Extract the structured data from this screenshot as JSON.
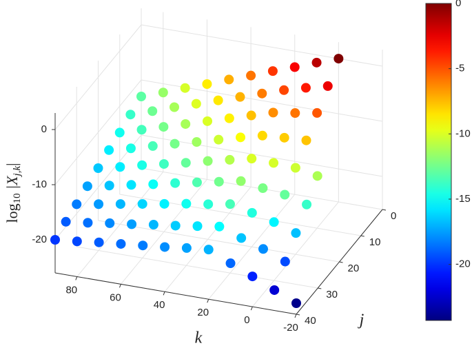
{
  "chart_data": {
    "type": "scatter3d",
    "xlabel": "k",
    "ylabel": "j",
    "zlabel": [
      "log",
      "10",
      " |X",
      "j,k",
      "|"
    ],
    "xlim": [
      -20,
      90
    ],
    "xticks": [
      -20,
      0,
      20,
      40,
      60,
      80
    ],
    "ylim": [
      0,
      40
    ],
    "yticks": [
      0,
      10,
      20,
      30,
      40
    ],
    "zlim": [
      -26,
      3
    ],
    "zticks": [
      -20,
      -10,
      0
    ],
    "colormap": "jet",
    "clim": [
      -24.3,
      0
    ],
    "cticks": [
      -20,
      -15,
      -10,
      -5,
      0
    ],
    "grid": true,
    "series": [
      {
        "y": 0,
        "x": [
          0,
          10,
          20,
          30,
          40,
          50,
          60,
          70,
          80,
          90
        ],
        "values": [
          0,
          -1.4,
          -2.9,
          -4.3,
          -5.8,
          -7.2,
          -8.7,
          -10.1,
          -11.6,
          -13
        ]
      },
      {
        "y": 5,
        "x": [
          0,
          10,
          20,
          30,
          40,
          50,
          60,
          70,
          80,
          90
        ],
        "values": [
          -2.6,
          -3.6,
          -4.7,
          -6.0,
          -7.3,
          -8.6,
          -9.9,
          -11.2,
          -12.6,
          -13.9
        ]
      },
      {
        "y": 10,
        "x": [
          0,
          10,
          20,
          30,
          40,
          50,
          60,
          70,
          80,
          90
        ],
        "values": [
          -5.1,
          -5.8,
          -6.4,
          -7.6,
          -8.8,
          -10.0,
          -11.2,
          -12.4,
          -13.6,
          -14.8
        ]
      },
      {
        "y": 15,
        "x": [
          0,
          10,
          20,
          30,
          40,
          50,
          60,
          70,
          80,
          90
        ],
        "values": [
          -7.7,
          -7.9,
          -8.2,
          -9.2,
          -10.3,
          -11.4,
          -12.4,
          -13.5,
          -14.6,
          -15.6
        ]
      },
      {
        "y": 20,
        "x": [
          -10,
          0,
          10,
          20,
          30,
          40,
          50,
          60,
          70,
          80,
          90
        ],
        "values": [
          -11.1,
          -10.3,
          -10.1,
          -10.0,
          -10.9,
          -11.8,
          -12.8,
          -13.7,
          -14.6,
          -15.6,
          -16.5
        ]
      },
      {
        "y": 25,
        "x": [
          -10,
          0,
          10,
          20,
          30,
          40,
          50,
          60,
          70,
          80,
          90
        ],
        "values": [
          -13.9,
          -12.8,
          -12.3,
          -11.7,
          -12.5,
          -13.3,
          -14.1,
          -15.0,
          -15.8,
          -16.6,
          -17.4
        ]
      },
      {
        "y": 30,
        "x": [
          -10,
          0,
          10,
          20,
          30,
          40,
          50,
          60,
          70,
          80,
          90
        ],
        "values": [
          -16.7,
          -15.4,
          -14.4,
          -13.5,
          -14.2,
          -14.8,
          -15.5,
          -16.2,
          -16.9,
          -17.6,
          -18.3
        ]
      },
      {
        "y": 35,
        "x": [
          -10,
          0,
          10,
          20,
          30,
          40,
          50,
          60,
          70,
          80,
          90
        ],
        "values": [
          -19.5,
          -17.9,
          -16.6,
          -15.2,
          -15.8,
          -16.4,
          -16.9,
          -17.5,
          -18.0,
          -18.6,
          -19.1
        ]
      },
      {
        "y": 40,
        "x": [
          -20,
          -10,
          0,
          10,
          20,
          30,
          40,
          50,
          60,
          70,
          80,
          90
        ],
        "values": [
          -24,
          -22.3,
          -20.5,
          -18.8,
          -17,
          -17.4,
          -17.9,
          -18.3,
          -18.7,
          -19.1,
          -19.6,
          -20
        ]
      }
    ]
  }
}
